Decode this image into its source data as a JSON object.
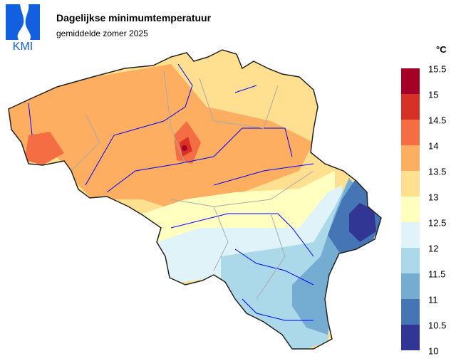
{
  "header": {
    "logo_text": "KMI",
    "title": "Dagelijkse minimumtemperatuur",
    "subtitle": "gemiddelde zomer 2025"
  },
  "legend": {
    "unit": "°C",
    "ticks": [
      "15.5",
      "15",
      "14.5",
      "14",
      "13.5",
      "13",
      "12.5",
      "12",
      "11.5",
      "11",
      "10.5",
      "10"
    ],
    "colors": [
      "#a50026",
      "#d73027",
      "#f46d43",
      "#fdae61",
      "#fee090",
      "#ffffbf",
      "#e0f3f8",
      "#abd9e9",
      "#74add1",
      "#4575b4",
      "#313695"
    ]
  },
  "map": {
    "region": "Belgium",
    "border_color": "#222222",
    "river_color": "#0000ff",
    "province_border_color": "#aaaaaa"
  }
}
